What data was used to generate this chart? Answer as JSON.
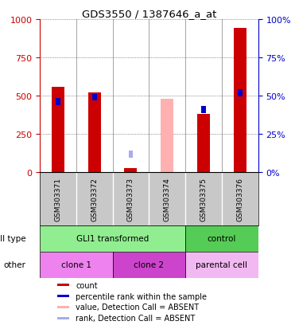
{
  "title": "GDS3550 / 1387646_a_at",
  "samples": [
    "GSM303371",
    "GSM303372",
    "GSM303373",
    "GSM303374",
    "GSM303375",
    "GSM303376"
  ],
  "count_values": [
    560,
    520,
    30,
    null,
    380,
    940
  ],
  "count_absent": [
    null,
    null,
    null,
    480,
    null,
    null
  ],
  "percentile_values": [
    46,
    49,
    null,
    null,
    41,
    52
  ],
  "percentile_absent": [
    null,
    null,
    12,
    null,
    null,
    null
  ],
  "ylim": [
    0,
    1000
  ],
  "y2lim": [
    0,
    100
  ],
  "yticks": [
    0,
    250,
    500,
    750,
    1000
  ],
  "y2ticks": [
    0,
    25,
    50,
    75,
    100
  ],
  "cell_type_groups": [
    {
      "label": "GLI1 transformed",
      "start": 0,
      "end": 4,
      "color": "#90EE90"
    },
    {
      "label": "control",
      "start": 4,
      "end": 6,
      "color": "#55CC55"
    }
  ],
  "other_groups": [
    {
      "label": "clone 1",
      "start": 0,
      "end": 2,
      "color": "#EE82EE"
    },
    {
      "label": "clone 2",
      "start": 2,
      "end": 4,
      "color": "#CC44CC"
    },
    {
      "label": "parental cell",
      "start": 4,
      "end": 6,
      "color": "#F2B8F2"
    }
  ],
  "bar_width": 0.35,
  "count_color": "#CC0000",
  "count_absent_color": "#FFB0B0",
  "percentile_color": "#0000CC",
  "percentile_absent_color": "#AAAAEE",
  "grid_color": "#444444",
  "left_axis_color": "#CC0000",
  "right_axis_color": "#0000CC",
  "sample_bg_color": "#C8C8C8",
  "legend_items": [
    {
      "label": "count",
      "color": "#CC0000"
    },
    {
      "label": "percentile rank within the sample",
      "color": "#0000CC"
    },
    {
      "label": "value, Detection Call = ABSENT",
      "color": "#FFB0B0"
    },
    {
      "label": "rank, Detection Call = ABSENT",
      "color": "#AAAAEE"
    }
  ]
}
